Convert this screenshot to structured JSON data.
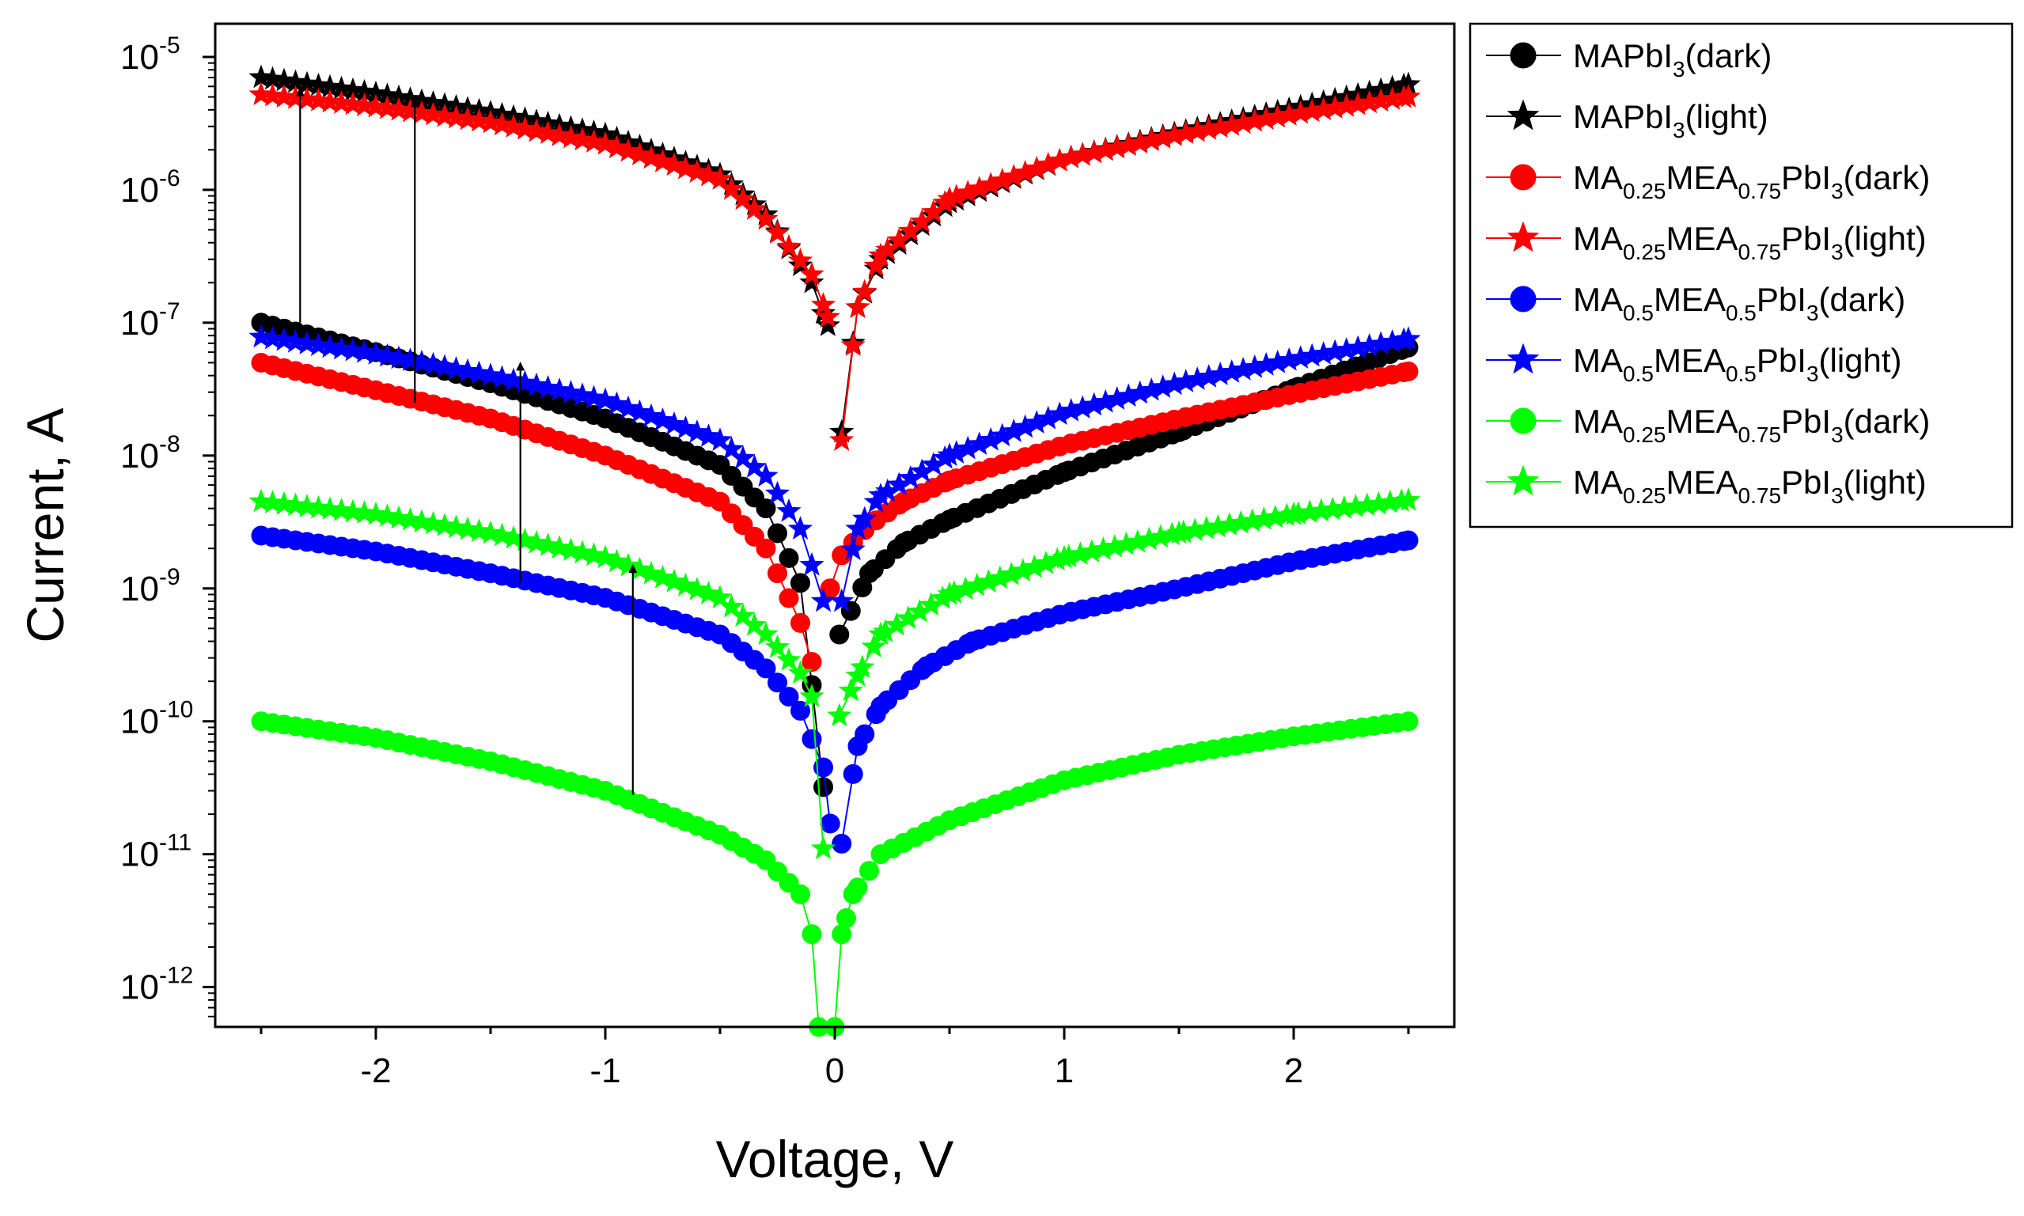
{
  "chart_data": {
    "type": "scatter",
    "xlabel": "Voltage, V",
    "ylabel": "Current, A",
    "xlim": [
      -2.7,
      2.7
    ],
    "ylim_log10": [
      -12.3,
      -4.75
    ],
    "y_scale": "log",
    "x_ticks": [
      {
        "value": -2,
        "label": "-2"
      },
      {
        "value": -1,
        "label": "-1"
      },
      {
        "value": 0,
        "label": "0"
      },
      {
        "value": 1,
        "label": "1"
      },
      {
        "value": 2,
        "label": "2"
      }
    ],
    "y_ticks": [
      {
        "exp": -5,
        "base": "10",
        "sup": "-5"
      },
      {
        "exp": -6,
        "base": "10",
        "sup": "-6"
      },
      {
        "exp": -7,
        "base": "10",
        "sup": "-7"
      },
      {
        "exp": -8,
        "base": "10",
        "sup": "-8"
      },
      {
        "exp": -9,
        "base": "10",
        "sup": "-9"
      },
      {
        "exp": -10,
        "base": "10",
        "sup": "-10"
      },
      {
        "exp": -11,
        "base": "10",
        "sup": "-11"
      },
      {
        "exp": -12,
        "base": "10",
        "sup": "-12"
      }
    ],
    "legend_position": "outside-right",
    "series": [
      {
        "name": "MAPbI3(dark)",
        "label_parts": [
          {
            "t": "MAPbI"
          },
          {
            "t": "3",
            "sub": true
          },
          {
            "t": "(dark)"
          }
        ],
        "color": "#000000",
        "marker": "circle",
        "neg": [
          [
            -2.5,
            1e-07
          ],
          [
            -2.0,
            6e-08
          ],
          [
            -1.5,
            3.5e-08
          ],
          [
            -1.0,
            1.9e-08
          ],
          [
            -0.5,
            8.5e-09
          ],
          [
            -0.3,
            4e-09
          ],
          [
            -0.15,
            1.1e-09
          ],
          [
            -0.05,
            3.2e-11
          ]
        ],
        "pos": [
          [
            0.02,
            4.5e-10
          ],
          [
            0.15,
            1.3e-09
          ],
          [
            0.3,
            2.2e-09
          ],
          [
            0.5,
            3.3e-09
          ],
          [
            1.0,
            7.5e-09
          ],
          [
            1.5,
            1.5e-08
          ],
          [
            2.0,
            3.2e-08
          ],
          [
            2.5,
            6.5e-08
          ]
        ]
      },
      {
        "name": "MAPbI3(light)",
        "label_parts": [
          {
            "t": "MAPbI"
          },
          {
            "t": "3",
            "sub": true
          },
          {
            "t": "(light)"
          }
        ],
        "color": "#000000",
        "marker": "star",
        "neg": [
          [
            -2.5,
            7e-06
          ],
          [
            -2.0,
            5.3e-06
          ],
          [
            -1.5,
            3.8e-06
          ],
          [
            -1.0,
            2.6e-06
          ],
          [
            -0.5,
            1.3e-06
          ],
          [
            -0.3,
            6.5e-07
          ],
          [
            -0.1,
            2e-07
          ],
          [
            -0.03,
            9.5e-08
          ]
        ],
        "pos": [
          [
            0.03,
            1.5e-08
          ],
          [
            0.1,
            1.3e-07
          ],
          [
            0.2,
            3e-07
          ],
          [
            0.5,
            8e-07
          ],
          [
            1.0,
            1.7e-06
          ],
          [
            1.5,
            2.7e-06
          ],
          [
            2.0,
            4.1e-06
          ],
          [
            2.5,
            6.2e-06
          ]
        ]
      },
      {
        "name": "MA0.25MEA0.75PbI3(dark)",
        "label_parts": [
          {
            "t": "MA"
          },
          {
            "t": "0.25",
            "sub": true
          },
          {
            "t": "MEA"
          },
          {
            "t": "0.75",
            "sub": true
          },
          {
            "t": "PbI"
          },
          {
            "t": "3",
            "sub": true
          },
          {
            "t": "(dark)"
          }
        ],
        "color": "#ff0000",
        "marker": "circle",
        "neg": [
          [
            -2.5,
            5e-08
          ],
          [
            -2.0,
            3.1e-08
          ],
          [
            -1.5,
            1.9e-08
          ],
          [
            -1.0,
            1e-08
          ],
          [
            -0.5,
            4.5e-09
          ],
          [
            -0.3,
            2e-09
          ],
          [
            -0.15,
            5.5e-10
          ],
          [
            -0.1,
            2.8e-10
          ]
        ],
        "pos": [
          [
            -0.02,
            1e-09
          ],
          [
            0.02,
            1.7e-09
          ],
          [
            0.15,
            3e-09
          ],
          [
            0.3,
            4.5e-09
          ],
          [
            0.5,
            6.5e-09
          ],
          [
            1.0,
            1.2e-08
          ],
          [
            1.5,
            1.9e-08
          ],
          [
            2.0,
            2.9e-08
          ],
          [
            2.5,
            4.3e-08
          ]
        ]
      },
      {
        "name": "MA0.25MEA0.75PbI3(light)",
        "label_parts": [
          {
            "t": "MA"
          },
          {
            "t": "0.25",
            "sub": true
          },
          {
            "t": "MEA"
          },
          {
            "t": "0.75",
            "sub": true
          },
          {
            "t": "PbI"
          },
          {
            "t": "3",
            "sub": true
          },
          {
            "t": "(light)"
          }
        ],
        "color": "#ff0000",
        "marker": "star",
        "neg": [
          [
            -2.5,
            5.2e-06
          ],
          [
            -2.0,
            4.2e-06
          ],
          [
            -1.5,
            3.2e-06
          ],
          [
            -1.0,
            2.2e-06
          ],
          [
            -0.5,
            1.2e-06
          ],
          [
            -0.3,
            6e-07
          ],
          [
            -0.1,
            2.3e-07
          ],
          [
            -0.03,
            1.1e-07
          ]
        ],
        "pos": [
          [
            0.03,
            1.3e-08
          ],
          [
            0.1,
            1.3e-07
          ],
          [
            0.2,
            3.2e-07
          ],
          [
            0.5,
            8.5e-07
          ],
          [
            1.0,
            1.7e-06
          ],
          [
            1.5,
            2.6e-06
          ],
          [
            2.0,
            3.7e-06
          ],
          [
            2.5,
            5e-06
          ]
        ]
      },
      {
        "name": "MA0.5MEA0.5PbI3(dark)",
        "label_parts": [
          {
            "t": "MA"
          },
          {
            "t": "0.5",
            "sub": true
          },
          {
            "t": "MEA"
          },
          {
            "t": "0.5",
            "sub": true
          },
          {
            "t": "PbI"
          },
          {
            "t": "3",
            "sub": true
          },
          {
            "t": "(dark)"
          }
        ],
        "color": "#0000ff",
        "marker": "circle",
        "neg": [
          [
            -2.5,
            2.5e-09
          ],
          [
            -2.0,
            1.9e-09
          ],
          [
            -1.5,
            1.3e-09
          ],
          [
            -1.0,
            8.5e-10
          ],
          [
            -0.5,
            4.5e-10
          ],
          [
            -0.3,
            2.5e-10
          ],
          [
            -0.15,
            1.2e-10
          ],
          [
            -0.05,
            4.5e-11
          ],
          [
            -0.02,
            1.7e-11
          ]
        ],
        "pos": [
          [
            0.03,
            1.2e-11
          ],
          [
            0.1,
            6.5e-11
          ],
          [
            0.2,
            1.3e-10
          ],
          [
            0.4,
            2.6e-10
          ],
          [
            0.6,
            4e-10
          ],
          [
            1.0,
            6.5e-10
          ],
          [
            1.5,
            1e-09
          ],
          [
            2.0,
            1.6e-09
          ],
          [
            2.5,
            2.3e-09
          ]
        ]
      },
      {
        "name": "MA0.5MEA0.5PbI3(light)",
        "label_parts": [
          {
            "t": "MA"
          },
          {
            "t": "0.5",
            "sub": true
          },
          {
            "t": "MEA"
          },
          {
            "t": "0.5",
            "sub": true
          },
          {
            "t": "PbI"
          },
          {
            "t": "3",
            "sub": true
          },
          {
            "t": "(light)"
          }
        ],
        "color": "#0000ff",
        "marker": "star",
        "neg": [
          [
            -2.5,
            7.8e-08
          ],
          [
            -2.0,
            5.8e-08
          ],
          [
            -1.5,
            4e-08
          ],
          [
            -1.0,
            2.6e-08
          ],
          [
            -0.5,
            1.3e-08
          ],
          [
            -0.3,
            7e-09
          ],
          [
            -0.15,
            2.8e-09
          ],
          [
            -0.05,
            8e-10
          ]
        ],
        "pos": [
          [
            0.03,
            8e-10
          ],
          [
            0.1,
            2.8e-09
          ],
          [
            0.2,
            5e-09
          ],
          [
            0.5,
            1e-08
          ],
          [
            1.0,
            2.1e-08
          ],
          [
            1.5,
            3.5e-08
          ],
          [
            2.0,
            5.3e-08
          ],
          [
            2.5,
            7.5e-08
          ]
        ]
      },
      {
        "name": "MA0.25MEA0.75PbI3(dark)",
        "label_parts": [
          {
            "t": "MA"
          },
          {
            "t": "0.25",
            "sub": true
          },
          {
            "t": "MEA"
          },
          {
            "t": "0.75",
            "sub": true
          },
          {
            "t": "PbI"
          },
          {
            "t": "3",
            "sub": true
          },
          {
            "t": "(dark)"
          }
        ],
        "color": "#00ff00",
        "marker": "circle",
        "neg": [
          [
            -2.5,
            1e-10
          ],
          [
            -2.0,
            7.5e-11
          ],
          [
            -1.5,
            5e-11
          ],
          [
            -1.0,
            3e-11
          ],
          [
            -0.5,
            1.4e-11
          ],
          [
            -0.3,
            9e-12
          ],
          [
            -0.15,
            5e-12
          ],
          [
            -0.1,
            2.5e-12
          ],
          [
            -0.07,
            5e-13
          ]
        ],
        "pos": [
          [
            0.0,
            5e-13
          ],
          [
            0.03,
            2.5e-12
          ],
          [
            0.08,
            5e-12
          ],
          [
            0.2,
            1e-11
          ],
          [
            0.5,
            1.8e-11
          ],
          [
            1.0,
            3.6e-11
          ],
          [
            1.5,
            5.6e-11
          ],
          [
            2.0,
            7.7e-11
          ],
          [
            2.5,
            1e-10
          ]
        ]
      },
      {
        "name": "MA0.25MEA0.75PbI3(light)",
        "label_parts": [
          {
            "t": "MA"
          },
          {
            "t": "0.25",
            "sub": true
          },
          {
            "t": "MEA"
          },
          {
            "t": "0.75",
            "sub": true
          },
          {
            "t": "PbI"
          },
          {
            "t": "3",
            "sub": true
          },
          {
            "t": "(light)"
          }
        ],
        "color": "#00ff00",
        "marker": "star",
        "neg": [
          [
            -2.5,
            4.5e-09
          ],
          [
            -2.0,
            3.6e-09
          ],
          [
            -1.5,
            2.6e-09
          ],
          [
            -1.0,
            1.7e-09
          ],
          [
            -0.5,
            8.5e-10
          ],
          [
            -0.3,
            4.5e-10
          ],
          [
            -0.15,
            2.3e-10
          ],
          [
            -0.07,
            1.2e-10
          ],
          [
            -0.05,
            1.1e-11
          ]
        ],
        "pos": [
          [
            0.02,
            1.1e-10
          ],
          [
            0.1,
            2.2e-10
          ],
          [
            0.2,
            4.5e-10
          ],
          [
            0.5,
            9e-10
          ],
          [
            1.0,
            1.7e-09
          ],
          [
            1.5,
            2.6e-09
          ],
          [
            2.0,
            3.6e-09
          ],
          [
            2.5,
            4.6e-09
          ]
        ]
      }
    ],
    "annotations": [
      {
        "type": "arrow",
        "x": -2.33,
        "from": 1e-07,
        "to": 5.8e-06
      },
      {
        "type": "arrow",
        "x": -1.83,
        "from": 2.5e-08,
        "to": 4.8e-06
      },
      {
        "type": "arrow",
        "x": -1.37,
        "from": 1.1e-09,
        "to": 5e-08
      },
      {
        "type": "arrow",
        "x": -0.88,
        "from": 2.8e-11,
        "to": 1.5e-09
      }
    ]
  }
}
